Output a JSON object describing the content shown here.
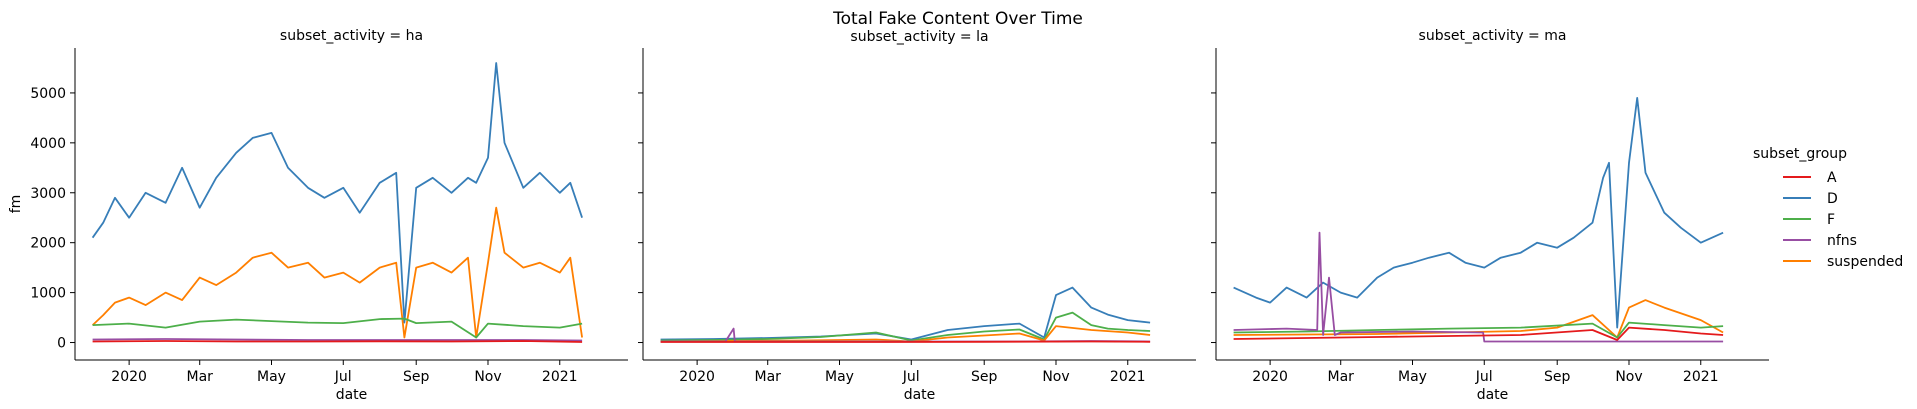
{
  "chart_data": {
    "type": "line",
    "title": "Total Fake Content Over Time",
    "xlabel": "date",
    "ylabel": "fm",
    "ylim": [
      -350,
      5900
    ],
    "yticks": [
      0,
      1000,
      2000,
      3000,
      4000,
      5000
    ],
    "x_range": [
      "2019-11-16",
      "2021-02-28"
    ],
    "xticks": [
      {
        "date": "2020-01-01",
        "label": "2020"
      },
      {
        "date": "2020-03-01",
        "label": "Mar"
      },
      {
        "date": "2020-05-01",
        "label": "May"
      },
      {
        "date": "2020-07-01",
        "label": "Jul"
      },
      {
        "date": "2020-09-01",
        "label": "Sep"
      },
      {
        "date": "2020-11-01",
        "label": "Nov"
      },
      {
        "date": "2021-01-01",
        "label": "2021"
      }
    ],
    "grid": false,
    "legend": {
      "title": "subset_group",
      "position": "right",
      "entries": [
        {
          "name": "A",
          "color": "#e41a1c"
        },
        {
          "name": "D",
          "color": "#377eb8"
        },
        {
          "name": "F",
          "color": "#4daf4a"
        },
        {
          "name": "nfns",
          "color": "#984ea3"
        },
        {
          "name": "suspended",
          "color": "#ff7f00"
        }
      ]
    },
    "facets": [
      {
        "title": "subset_activity = ha",
        "series": [
          {
            "name": "D",
            "x": [
              "2019-12-01",
              "2019-12-10",
              "2019-12-20",
              "2020-01-01",
              "2020-01-15",
              "2020-02-01",
              "2020-02-15",
              "2020-03-01",
              "2020-03-15",
              "2020-04-01",
              "2020-04-15",
              "2020-05-01",
              "2020-05-15",
              "2020-06-01",
              "2020-06-15",
              "2020-07-01",
              "2020-07-15",
              "2020-08-01",
              "2020-08-15",
              "2020-08-22",
              "2020-09-01",
              "2020-09-15",
              "2020-10-01",
              "2020-10-15",
              "2020-10-22",
              "2020-11-01",
              "2020-11-08",
              "2020-11-15",
              "2020-12-01",
              "2020-12-15",
              "2021-01-01",
              "2021-01-10",
              "2021-01-20"
            ],
            "y": [
              2100,
              2400,
              2900,
              2500,
              3000,
              2800,
              3500,
              2700,
              3300,
              3800,
              4100,
              4200,
              3500,
              3100,
              2900,
              3100,
              2600,
              3200,
              3400,
              400,
              3100,
              3300,
              3000,
              3300,
              3200,
              3700,
              5600,
              4000,
              3100,
              3400,
              3000,
              3200,
              2500
            ]
          },
          {
            "name": "suspended",
            "x": [
              "2019-12-01",
              "2019-12-10",
              "2019-12-20",
              "2020-01-01",
              "2020-01-15",
              "2020-02-01",
              "2020-02-15",
              "2020-03-01",
              "2020-03-15",
              "2020-04-01",
              "2020-04-15",
              "2020-05-01",
              "2020-05-15",
              "2020-06-01",
              "2020-06-15",
              "2020-07-01",
              "2020-07-15",
              "2020-08-01",
              "2020-08-15",
              "2020-08-22",
              "2020-09-01",
              "2020-09-15",
              "2020-10-01",
              "2020-10-15",
              "2020-10-22",
              "2020-11-01",
              "2020-11-08",
              "2020-11-15",
              "2020-12-01",
              "2020-12-15",
              "2021-01-01",
              "2021-01-10",
              "2021-01-20"
            ],
            "y": [
              350,
              550,
              800,
              900,
              750,
              1000,
              850,
              1300,
              1150,
              1400,
              1700,
              1800,
              1500,
              1600,
              1300,
              1400,
              1200,
              1500,
              1600,
              100,
              1500,
              1600,
              1400,
              1700,
              100,
              1600,
              2700,
              1800,
              1500,
              1600,
              1400,
              1700,
              100
            ]
          },
          {
            "name": "F",
            "x": [
              "2019-12-01",
              "2020-01-01",
              "2020-02-01",
              "2020-03-01",
              "2020-04-01",
              "2020-05-01",
              "2020-06-01",
              "2020-07-01",
              "2020-08-01",
              "2020-08-22",
              "2020-09-01",
              "2020-10-01",
              "2020-10-22",
              "2020-11-01",
              "2020-12-01",
              "2021-01-01",
              "2021-01-20"
            ],
            "y": [
              350,
              380,
              300,
              420,
              460,
              430,
              400,
              390,
              470,
              480,
              390,
              420,
              100,
              380,
              330,
              300,
              380
            ]
          },
          {
            "name": "nfns",
            "x": [
              "2019-12-01",
              "2020-02-01",
              "2020-04-01",
              "2020-06-01",
              "2020-08-01",
              "2020-10-01",
              "2020-12-01",
              "2021-01-20"
            ],
            "y": [
              60,
              70,
              60,
              50,
              50,
              50,
              50,
              40
            ]
          },
          {
            "name": "A",
            "x": [
              "2019-12-01",
              "2020-02-01",
              "2020-04-01",
              "2020-06-01",
              "2020-08-01",
              "2020-10-01",
              "2020-12-01",
              "2021-01-20"
            ],
            "y": [
              20,
              30,
              20,
              20,
              25,
              20,
              30,
              10
            ]
          }
        ]
      },
      {
        "title": "subset_activity = la",
        "series": [
          {
            "name": "D",
            "x": [
              "2019-12-01",
              "2020-01-15",
              "2020-03-01",
              "2020-04-15",
              "2020-06-01",
              "2020-07-01",
              "2020-08-01",
              "2020-09-01",
              "2020-10-01",
              "2020-10-22",
              "2020-11-01",
              "2020-11-15",
              "2020-12-01",
              "2020-12-15",
              "2021-01-01",
              "2021-01-20"
            ],
            "y": [
              60,
              70,
              90,
              120,
              180,
              60,
              250,
              330,
              380,
              100,
              950,
              1100,
              700,
              560,
              450,
              400
            ]
          },
          {
            "name": "F",
            "x": [
              "2019-12-01",
              "2020-01-15",
              "2020-03-01",
              "2020-04-15",
              "2020-06-01",
              "2020-07-01",
              "2020-08-01",
              "2020-09-01",
              "2020-10-01",
              "2020-10-22",
              "2020-11-01",
              "2020-11-15",
              "2020-12-01",
              "2020-12-15",
              "2021-01-01",
              "2021-01-20"
            ],
            "y": [
              40,
              50,
              70,
              110,
              200,
              40,
              150,
              220,
              260,
              60,
              500,
              600,
              350,
              280,
              250,
              230
            ]
          },
          {
            "name": "suspended",
            "x": [
              "2019-12-01",
              "2020-02-01",
              "2020-04-01",
              "2020-06-01",
              "2020-07-01",
              "2020-08-01",
              "2020-09-01",
              "2020-10-01",
              "2020-10-22",
              "2020-11-01",
              "2020-12-01",
              "2021-01-01",
              "2021-01-20"
            ],
            "y": [
              20,
              30,
              40,
              60,
              20,
              100,
              140,
              180,
              40,
              330,
              250,
              200,
              150
            ]
          },
          {
            "name": "nfns",
            "x": [
              "2019-12-01",
              "2020-01-25",
              "2020-02-01",
              "2020-02-02",
              "2020-02-10",
              "2020-04-01",
              "2020-06-01",
              "2020-08-01",
              "2020-10-01",
              "2020-12-01",
              "2021-01-20"
            ],
            "y": [
              20,
              20,
              280,
              20,
              20,
              20,
              20,
              20,
              20,
              30,
              20
            ]
          },
          {
            "name": "A",
            "x": [
              "2019-12-01",
              "2020-03-01",
              "2020-06-01",
              "2020-09-01",
              "2020-12-01",
              "2021-01-20"
            ],
            "y": [
              10,
              10,
              10,
              15,
              20,
              15
            ]
          }
        ]
      },
      {
        "title": "subset_activity = ma",
        "series": [
          {
            "name": "D",
            "x": [
              "2019-12-01",
              "2019-12-20",
              "2020-01-01",
              "2020-01-15",
              "2020-02-01",
              "2020-02-15",
              "2020-03-01",
              "2020-03-15",
              "2020-04-01",
              "2020-04-15",
              "2020-05-01",
              "2020-05-15",
              "2020-06-01",
              "2020-06-15",
              "2020-07-01",
              "2020-07-15",
              "2020-08-01",
              "2020-08-15",
              "2020-09-01",
              "2020-09-15",
              "2020-10-01",
              "2020-10-10",
              "2020-10-15",
              "2020-10-22",
              "2020-11-01",
              "2020-11-08",
              "2020-11-15",
              "2020-12-01",
              "2020-12-15",
              "2021-01-01",
              "2021-01-20"
            ],
            "y": [
              1100,
              900,
              800,
              1100,
              900,
              1200,
              1000,
              900,
              1300,
              1500,
              1600,
              1700,
              1800,
              1600,
              1500,
              1700,
              1800,
              2000,
              1900,
              2100,
              2400,
              3300,
              3600,
              300,
              3600,
              4900,
              3400,
              2600,
              2300,
              2000,
              2200
            ]
          },
          {
            "name": "suspended",
            "x": [
              "2019-12-01",
              "2020-02-01",
              "2020-04-01",
              "2020-06-01",
              "2020-08-01",
              "2020-09-01",
              "2020-10-01",
              "2020-10-22",
              "2020-11-01",
              "2020-11-15",
              "2020-12-01",
              "2021-01-01",
              "2021-01-20"
            ],
            "y": [
              150,
              160,
              170,
              200,
              230,
              300,
              550,
              100,
              700,
              850,
              700,
              450,
              200
            ]
          },
          {
            "name": "F",
            "x": [
              "2019-12-01",
              "2020-02-01",
              "2020-04-01",
              "2020-06-01",
              "2020-08-01",
              "2020-10-01",
              "2020-10-22",
              "2020-11-01",
              "2020-12-01",
              "2021-01-01",
              "2021-01-20"
            ],
            "y": [
              200,
              220,
              250,
              280,
              300,
              380,
              100,
              400,
              350,
              300,
              330
            ]
          },
          {
            "name": "nfns",
            "x": [
              "2019-12-01",
              "2020-01-15",
              "2020-02-10",
              "2020-02-12",
              "2020-02-15",
              "2020-02-20",
              "2020-02-25",
              "2020-03-01",
              "2020-05-01",
              "2020-06-30",
              "2020-07-01",
              "2020-10-01",
              "2020-11-01",
              "2020-12-15",
              "2021-01-20"
            ],
            "y": [
              250,
              280,
              250,
              2200,
              150,
              1300,
              150,
              200,
              220,
              200,
              20,
              20,
              20,
              20,
              20
            ]
          },
          {
            "name": "A",
            "x": [
              "2019-12-01",
              "2020-02-01",
              "2020-04-01",
              "2020-06-01",
              "2020-08-01",
              "2020-10-01",
              "2020-10-22",
              "2020-11-01",
              "2020-12-01",
              "2021-01-01",
              "2021-01-20"
            ],
            "y": [
              70,
              90,
              110,
              130,
              150,
              250,
              50,
              300,
              250,
              180,
              150
            ]
          }
        ]
      }
    ]
  }
}
